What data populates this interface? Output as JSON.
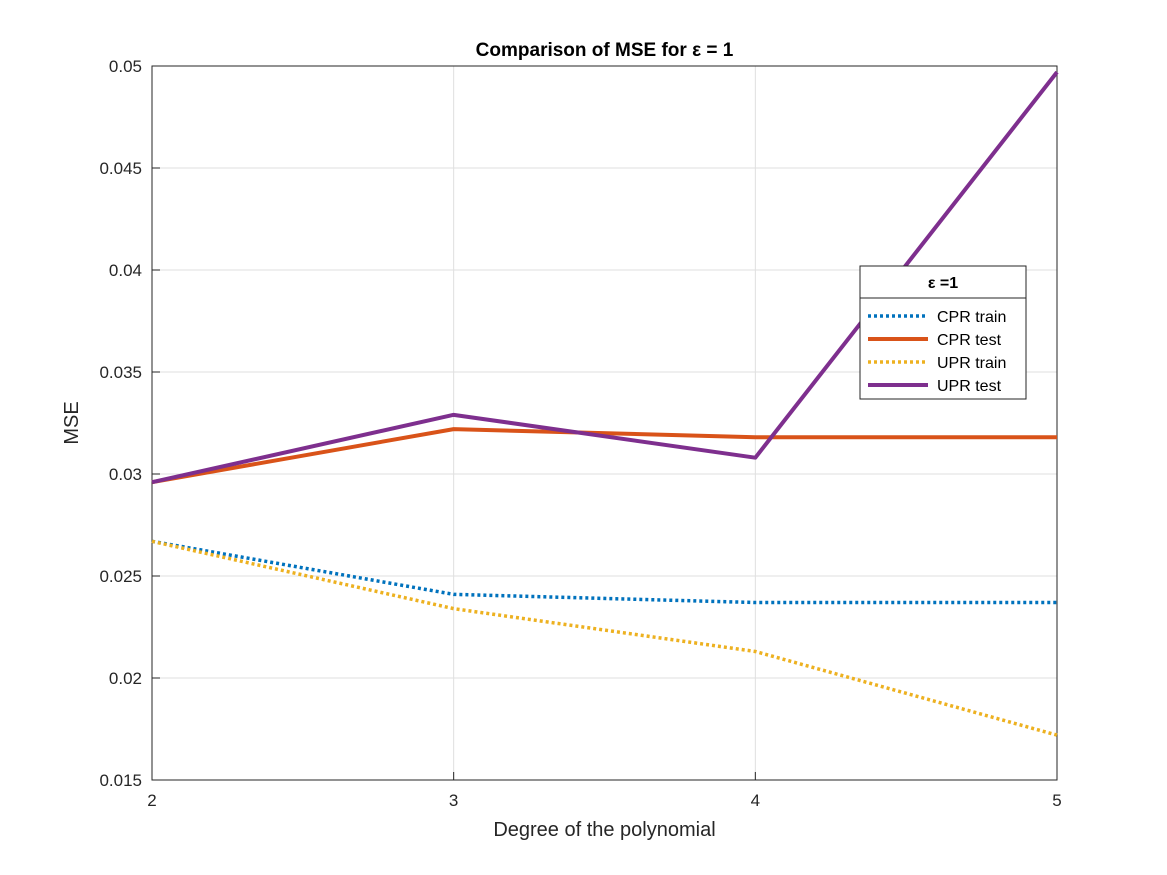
{
  "chart_data": {
    "type": "line",
    "title": "Comparison of MSE for ε = 1",
    "xlabel": "Degree of the polynomial",
    "ylabel": "MSE",
    "x": [
      2,
      3,
      4,
      5
    ],
    "xlim": [
      2,
      5
    ],
    "ylim": [
      0.015,
      0.05
    ],
    "xticks": [
      "2",
      "3",
      "4",
      "5"
    ],
    "yticks": [
      "0.015",
      "0.02",
      "0.025",
      "0.03",
      "0.035",
      "0.04",
      "0.045",
      "0.05"
    ],
    "grid": true,
    "legend": {
      "title": "ε =1",
      "placement": "right"
    },
    "series": [
      {
        "name": "CPR train",
        "values": [
          0.0267,
          0.0241,
          0.0237,
          0.0237
        ],
        "color": "#0072BD",
        "style": "dotted"
      },
      {
        "name": "CPR test",
        "values": [
          0.0296,
          0.0322,
          0.0318,
          0.0318
        ],
        "color": "#D95319",
        "style": "solid"
      },
      {
        "name": "UPR train",
        "values": [
          0.0267,
          0.0234,
          0.0213,
          0.0172
        ],
        "color": "#EDB120",
        "style": "dotted"
      },
      {
        "name": "UPR test",
        "values": [
          0.0296,
          0.0329,
          0.0308,
          0.0497
        ],
        "color": "#7E2F8E",
        "style": "solid"
      }
    ]
  }
}
